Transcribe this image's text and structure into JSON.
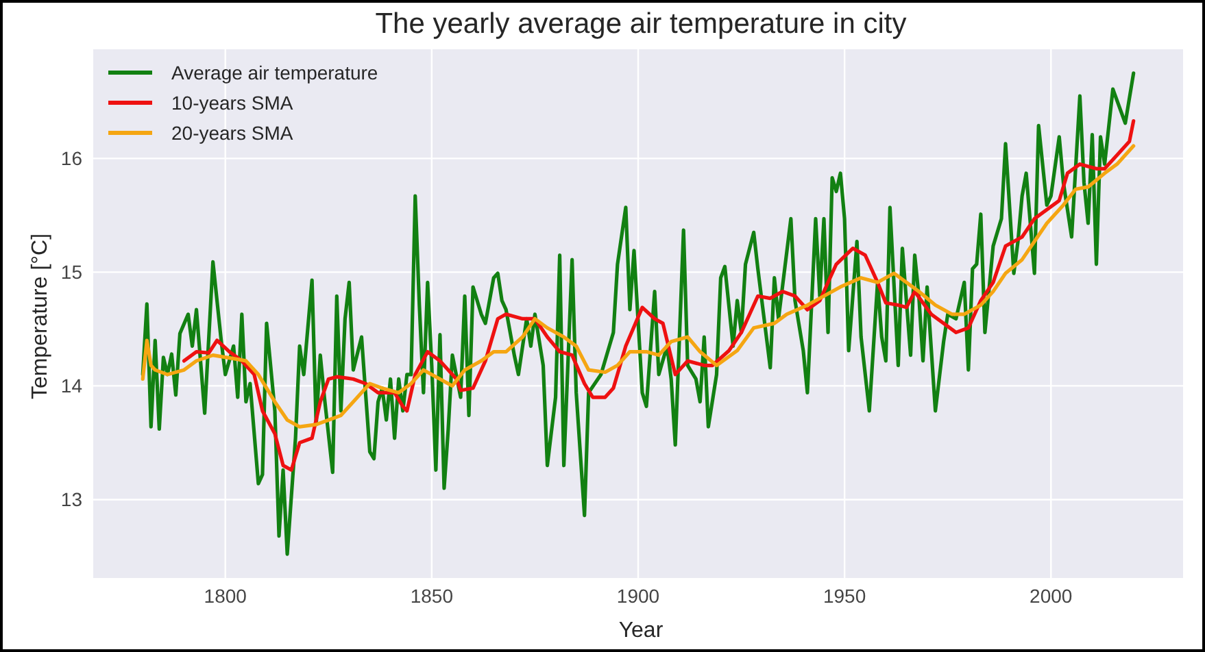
{
  "chart_data": {
    "type": "line",
    "title": "The yearly average air temperature in city",
    "xlabel": "Year",
    "ylabel": "Temperature [°C]",
    "xlim": [
      1768,
      2032
    ],
    "xticks": [
      1800,
      1850,
      1900,
      1950,
      2000
    ],
    "ylim": [
      12.31,
      16.96
    ],
    "yticks": [
      13,
      14,
      15,
      16
    ],
    "grid": true,
    "legend": "top left",
    "marker": "none",
    "line_style": "solid",
    "series": [
      {
        "name": "Average air temperature",
        "color": "#128012",
        "x": [
          1780,
          1781,
          1782,
          1783,
          1784,
          1785,
          1786,
          1787,
          1788,
          1789,
          1791,
          1792,
          1793,
          1795,
          1797,
          1799,
          1800,
          1802,
          1803,
          1804,
          1805,
          1806,
          1808,
          1809,
          1810,
          1812,
          1813,
          1814,
          1815,
          1817,
          1818,
          1819,
          1821,
          1822,
          1823,
          1824,
          1826,
          1827,
          1828,
          1829,
          1830,
          1831,
          1833,
          1835,
          1836,
          1837,
          1838,
          1839,
          1840,
          1841,
          1842,
          1843,
          1844,
          1845,
          1846,
          1847,
          1848,
          1849,
          1850,
          1851,
          1852,
          1853,
          1854,
          1855,
          1857,
          1858,
          1859,
          1860,
          1862,
          1863,
          1865,
          1866,
          1867,
          1868,
          1870,
          1871,
          1873,
          1874,
          1875,
          1877,
          1878,
          1880,
          1881,
          1882,
          1884,
          1885,
          1887,
          1888,
          1891,
          1894,
          1895,
          1897,
          1898,
          1899,
          1901,
          1902,
          1904,
          1905,
          1907,
          1908,
          1909,
          1911,
          1912,
          1914,
          1915,
          1916,
          1917,
          1919,
          1920,
          1921,
          1923,
          1924,
          1925,
          1926,
          1928,
          1929,
          1932,
          1933,
          1934,
          1937,
          1938,
          1940,
          1941,
          1943,
          1944,
          1945,
          1946,
          1947,
          1948,
          1949,
          1950,
          1951,
          1953,
          1954,
          1956,
          1958,
          1959,
          1960,
          1961,
          1963,
          1964,
          1966,
          1967,
          1968,
          1969,
          1970,
          1972,
          1974,
          1975,
          1977,
          1979,
          1980,
          1981,
          1982,
          1983,
          1984,
          1986,
          1988,
          1989,
          1991,
          1992,
          1993,
          1994,
          1996,
          1997,
          1999,
          2000,
          2002,
          2003,
          2005,
          2007,
          2008,
          2009,
          2010,
          2011,
          2012,
          2013,
          2015,
          2018,
          2020
        ],
        "values": [
          14.1,
          14.72,
          13.64,
          14.4,
          13.62,
          14.25,
          14.1,
          14.28,
          13.92,
          14.46,
          14.63,
          14.35,
          14.67,
          13.76,
          15.09,
          14.4,
          14.1,
          14.35,
          13.9,
          14.63,
          13.86,
          14.02,
          13.14,
          13.22,
          14.55,
          13.78,
          12.68,
          13.26,
          12.52,
          13.54,
          14.35,
          14.1,
          14.93,
          13.66,
          14.27,
          13.9,
          13.24,
          14.79,
          13.78,
          14.59,
          14.91,
          14.14,
          14.43,
          13.42,
          13.36,
          13.86,
          13.98,
          13.7,
          14.06,
          13.54,
          14.06,
          13.78,
          14.1,
          14.1,
          15.67,
          14.71,
          13.94,
          14.91,
          14.18,
          13.26,
          14.45,
          13.1,
          13.62,
          14.27,
          13.9,
          14.79,
          13.74,
          14.87,
          14.63,
          14.55,
          14.95,
          14.99,
          14.75,
          14.67,
          14.27,
          14.1,
          14.59,
          14.35,
          14.63,
          14.18,
          13.3,
          13.9,
          15.15,
          13.3,
          15.11,
          13.94,
          12.86,
          13.94,
          14.1,
          14.47,
          15.07,
          15.57,
          14.67,
          15.19,
          13.94,
          13.82,
          14.83,
          14.1,
          14.35,
          14.06,
          13.48,
          15.37,
          14.18,
          14.06,
          13.86,
          14.43,
          13.64,
          14.1,
          14.95,
          15.05,
          14.35,
          14.75,
          14.47,
          15.07,
          15.35,
          15.03,
          14.16,
          14.95,
          14.59,
          15.47,
          14.75,
          14.31,
          13.94,
          15.47,
          14.79,
          15.47,
          14.47,
          15.83,
          15.71,
          15.87,
          15.47,
          14.31,
          15.27,
          14.43,
          13.78,
          14.91,
          14.43,
          14.22,
          15.57,
          14.18,
          15.21,
          14.27,
          15.15,
          14.79,
          14.22,
          14.87,
          13.78,
          14.39,
          14.63,
          14.59,
          14.91,
          14.14,
          15.03,
          15.07,
          15.51,
          14.47,
          15.23,
          15.47,
          16.13,
          14.99,
          15.27,
          15.67,
          15.87,
          14.99,
          16.29,
          15.59,
          15.67,
          16.19,
          15.79,
          15.31,
          16.55,
          15.79,
          15.43,
          16.21,
          15.07,
          16.19,
          15.95,
          16.61,
          16.31,
          16.75
        ]
      },
      {
        "name": "10-years SMA",
        "color": "#ee1111",
        "x": [
          1790,
          1793,
          1796,
          1798,
          1801,
          1804,
          1807,
          1809,
          1812,
          1814,
          1816,
          1818,
          1821,
          1823,
          1825,
          1827,
          1831,
          1834,
          1837,
          1841,
          1843,
          1844,
          1846,
          1849,
          1852,
          1856,
          1857,
          1860,
          1863,
          1866,
          1868,
          1872,
          1875,
          1878,
          1881,
          1884,
          1887,
          1889,
          1892,
          1894,
          1897,
          1901,
          1904,
          1906,
          1909,
          1912,
          1916,
          1918,
          1922,
          1925,
          1929,
          1932,
          1935,
          1938,
          1941,
          1944,
          1948,
          1952,
          1955,
          1958,
          1960,
          1963,
          1965,
          1967,
          1971,
          1974,
          1977,
          1980,
          1983,
          1986,
          1989,
          1993,
          1996,
          1999,
          2002,
          2004,
          2007,
          2011,
          2013,
          2016,
          2019,
          2020
        ],
        "values": [
          14.22,
          14.3,
          14.29,
          14.4,
          14.3,
          14.22,
          14.1,
          13.78,
          13.58,
          13.3,
          13.26,
          13.5,
          13.54,
          13.86,
          14.06,
          14.08,
          14.06,
          14.02,
          13.94,
          13.94,
          13.82,
          13.78,
          14.1,
          14.3,
          14.22,
          14.06,
          13.96,
          13.98,
          14.22,
          14.59,
          14.63,
          14.59,
          14.59,
          14.43,
          14.3,
          14.27,
          14.02,
          13.9,
          13.9,
          13.98,
          14.35,
          14.69,
          14.59,
          14.55,
          14.1,
          14.22,
          14.18,
          14.18,
          14.31,
          14.47,
          14.79,
          14.77,
          14.83,
          14.79,
          14.67,
          14.75,
          15.07,
          15.21,
          15.15,
          14.91,
          14.73,
          14.71,
          14.69,
          14.83,
          14.63,
          14.55,
          14.47,
          14.51,
          14.75,
          14.91,
          15.23,
          15.31,
          15.47,
          15.55,
          15.63,
          15.87,
          15.95,
          15.91,
          15.91,
          16.03,
          16.15,
          16.33
        ]
      },
      {
        "name": "20-years SMA",
        "color": "#f5a612",
        "x": [
          1780,
          1781,
          1782,
          1783,
          1786,
          1790,
          1793,
          1797,
          1802,
          1805,
          1808,
          1812,
          1815,
          1818,
          1822,
          1825,
          1828,
          1832,
          1835,
          1838,
          1842,
          1845,
          1848,
          1852,
          1855,
          1858,
          1862,
          1865,
          1868,
          1872,
          1875,
          1878,
          1882,
          1885,
          1888,
          1892,
          1895,
          1898,
          1902,
          1905,
          1908,
          1912,
          1915,
          1919,
          1924,
          1928,
          1933,
          1936,
          1941,
          1945,
          1949,
          1954,
          1958,
          1962,
          1965,
          1968,
          1972,
          1976,
          1979,
          1983,
          1986,
          1989,
          1993,
          1996,
          1999,
          2003,
          2006,
          2009,
          2013,
          2016,
          2020
        ],
        "values": [
          14.06,
          14.4,
          14.18,
          14.14,
          14.1,
          14.14,
          14.22,
          14.27,
          14.24,
          14.22,
          14.1,
          13.86,
          13.7,
          13.64,
          13.66,
          13.7,
          13.74,
          13.9,
          14.02,
          13.98,
          13.94,
          14.02,
          14.14,
          14.06,
          14.0,
          14.14,
          14.22,
          14.3,
          14.3,
          14.43,
          14.59,
          14.51,
          14.43,
          14.35,
          14.14,
          14.12,
          14.18,
          14.3,
          14.3,
          14.27,
          14.39,
          14.43,
          14.3,
          14.18,
          14.31,
          14.51,
          14.55,
          14.63,
          14.71,
          14.79,
          14.87,
          14.95,
          14.91,
          14.99,
          14.91,
          14.83,
          14.71,
          14.63,
          14.63,
          14.71,
          14.83,
          14.99,
          15.11,
          15.27,
          15.43,
          15.59,
          15.73,
          15.75,
          15.87,
          15.95,
          16.11
        ]
      }
    ]
  }
}
